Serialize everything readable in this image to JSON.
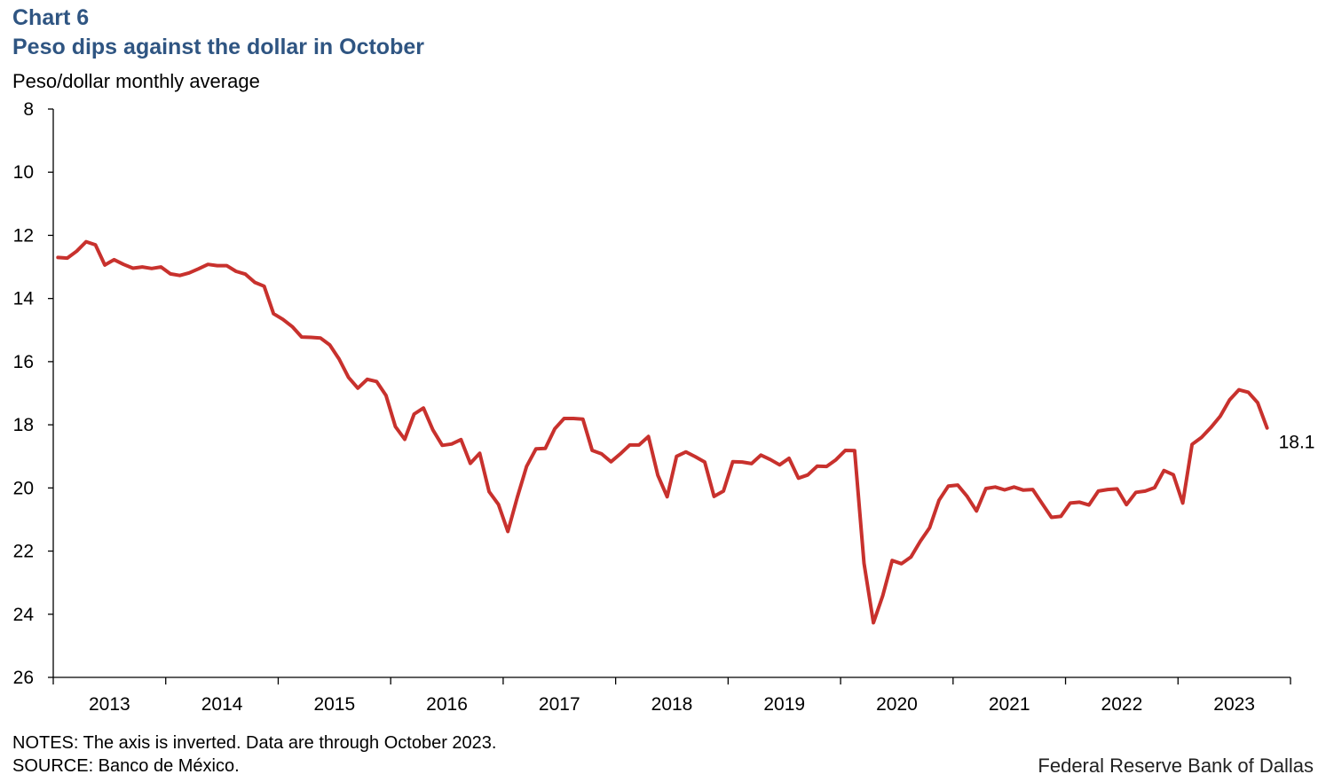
{
  "header": {
    "chart_label": "Chart 6",
    "title": "Peso dips against the dollar in October",
    "y_unit": "Peso/dollar monthly average"
  },
  "footer": {
    "notes": "NOTES: The axis is inverted. Data are through October 2023.",
    "source": "SOURCE: Banco de México.",
    "credit": "Federal Reserve Bank of Dallas"
  },
  "chart_data": {
    "type": "line",
    "title": "Peso dips against the dollar in October",
    "ylabel": "Peso/dollar monthly average",
    "y_inverted": true,
    "ylim": [
      8,
      26
    ],
    "yticks": [
      8,
      10,
      12,
      14,
      16,
      18,
      20,
      22,
      24,
      26
    ],
    "x_start": "2013-01",
    "x_end": "2023-10",
    "xtick_labels": [
      "2013",
      "2014",
      "2015",
      "2016",
      "2017",
      "2018",
      "2019",
      "2020",
      "2021",
      "2022",
      "2023"
    ],
    "grid": false,
    "series_color": "#c8312d",
    "end_label": "18.1",
    "series": [
      {
        "values": [
          12.7,
          12.72,
          12.5,
          12.2,
          12.3,
          12.94,
          12.77,
          12.92,
          13.04,
          13.0,
          13.05,
          13.0,
          13.22,
          13.27,
          13.19,
          13.06,
          12.92,
          12.96,
          12.96,
          13.14,
          13.23,
          13.49,
          13.61,
          14.48,
          14.66,
          14.89,
          15.22,
          15.23,
          15.25,
          15.47,
          15.92,
          16.5,
          16.84,
          16.56,
          16.63,
          17.07,
          18.06,
          18.46,
          17.66,
          17.47,
          18.16,
          18.65,
          18.61,
          18.47,
          19.22,
          18.9,
          20.12,
          20.52,
          21.38,
          20.3,
          19.32,
          18.76,
          18.75,
          18.13,
          17.8,
          17.8,
          17.82,
          18.81,
          18.92,
          19.17,
          18.92,
          18.64,
          18.64,
          18.37,
          19.6,
          20.28,
          19.0,
          18.86,
          19.01,
          19.18,
          20.27,
          20.1,
          19.17,
          19.18,
          19.23,
          18.96,
          19.1,
          19.27,
          19.06,
          19.69,
          19.59,
          19.31,
          19.32,
          19.11,
          18.81,
          18.82,
          22.39,
          24.27,
          23.41,
          22.3,
          22.4,
          22.19,
          21.69,
          21.26,
          20.39,
          19.94,
          19.91,
          20.27,
          20.73,
          20.02,
          19.97,
          20.06,
          19.97,
          20.07,
          20.05,
          20.49,
          20.93,
          20.9,
          20.48,
          20.45,
          20.54,
          20.1,
          20.05,
          20.03,
          20.53,
          20.14,
          20.1,
          19.99,
          19.45,
          19.58,
          20.48,
          18.62,
          18.4,
          18.09,
          17.73,
          17.21,
          16.89,
          16.97,
          17.3,
          18.1
        ]
      }
    ]
  }
}
